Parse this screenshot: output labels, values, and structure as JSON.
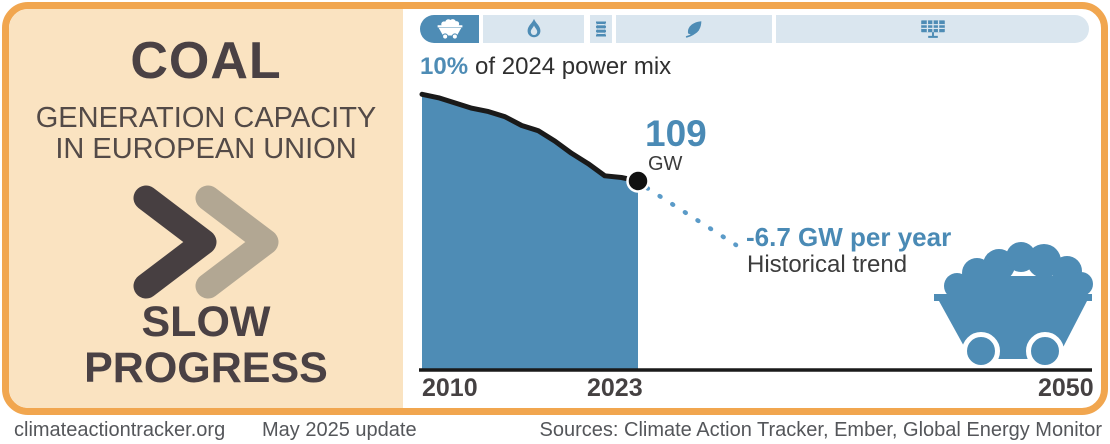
{
  "left_panel": {
    "title": "COAL",
    "subtitle": [
      "GENERATION CAPACITY",
      "IN EUROPEAN UNION"
    ],
    "verdict": [
      "SLOW",
      "PROGRESS"
    ]
  },
  "tab_bar": {
    "tabs": [
      {
        "name": "coal",
        "icon": "coal-cart-icon",
        "active": true
      },
      {
        "name": "gas",
        "icon": "flame-icon",
        "active": false
      },
      {
        "name": "oil",
        "icon": "oil-barrel-icon",
        "active": false
      },
      {
        "name": "bioenergy",
        "icon": "leaf-icon",
        "active": false
      },
      {
        "name": "solar",
        "icon": "solar-panel-icon",
        "active": false
      }
    ]
  },
  "power_mix": {
    "percent": "10%",
    "caption": "of 2024 power mix"
  },
  "chart_data": {
    "type": "area",
    "title": "Coal generation capacity in European Union",
    "x": [
      2010,
      2011,
      2012,
      2013,
      2014,
      2015,
      2016,
      2017,
      2018,
      2019,
      2020,
      2021,
      2022,
      2023
    ],
    "values_gw": [
      159,
      157,
      154,
      151,
      149,
      146,
      141,
      138,
      132,
      125,
      119,
      112,
      111,
      109
    ],
    "end_point": {
      "year": 2023,
      "value": 109,
      "label": "109",
      "unit": "GW"
    },
    "trend": {
      "label": "-6.7 GW per year",
      "sublabel": "Historical trend",
      "slope_gw_per_year": -6.7
    },
    "x_ticks": [
      "2010",
      "2023",
      "2050"
    ],
    "xlim": [
      2010,
      2050
    ],
    "ylim": [
      0,
      170
    ],
    "grid": false,
    "area_color": "#4E8CB5",
    "line_color": "#1A1A1A",
    "trend_color": "#5B9BC8"
  },
  "footer": {
    "site": "climateactiontracker.org",
    "update": "May 2025 update",
    "sources": "Sources: Climate Action Tracker, Ember, Global Energy Monitor"
  },
  "colors": {
    "frame_orange": "#F1A64F",
    "panel_peach": "#FAE3C1",
    "accent_blue": "#4E8CB5",
    "tab_inactive_bg": "#DAE6EF",
    "dark_text": "#4A4144",
    "chevron_dark": "#473F41",
    "chevron_light": "#B2A793"
  }
}
